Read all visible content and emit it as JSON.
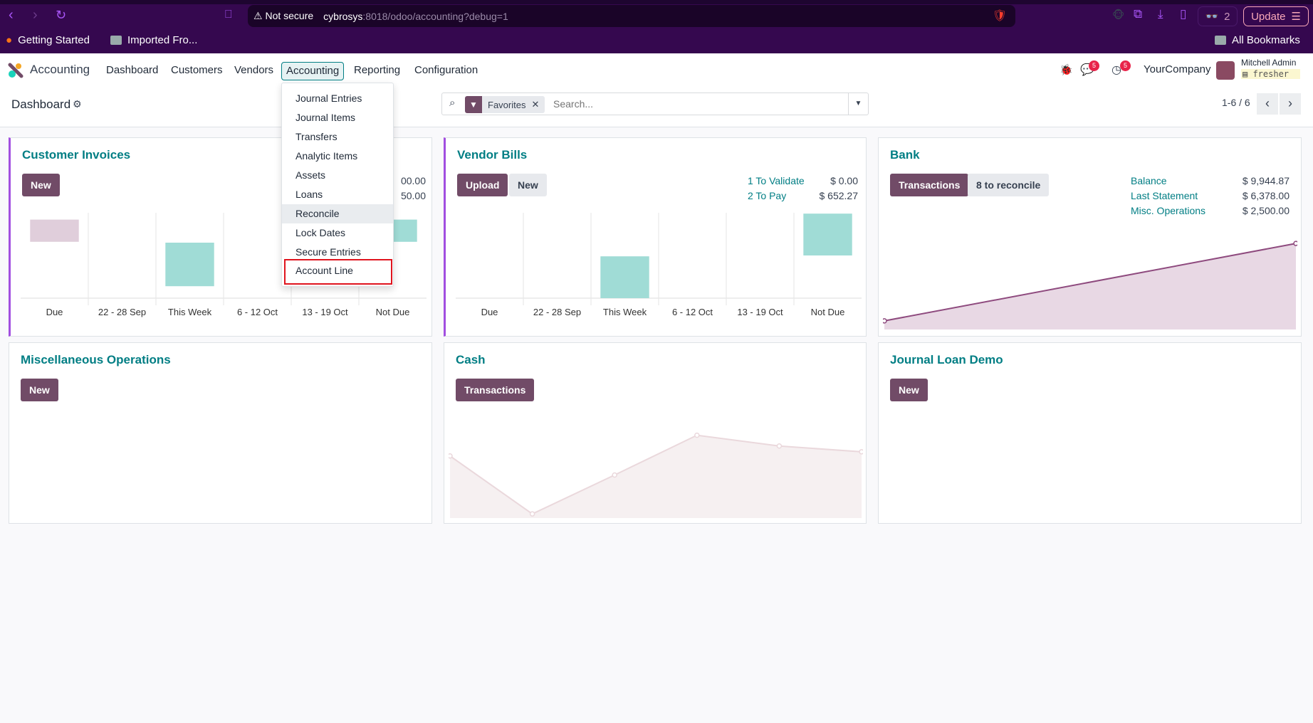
{
  "browser": {
    "not_secure": "Not secure",
    "url_host": "cybrosys",
    "url_path": ":8018/odoo/accounting?debug=1",
    "bookmarks": [
      "Getting Started",
      "Imported Fro..."
    ],
    "all_bookmarks": "All Bookmarks",
    "ext_count": "2",
    "update": "Update"
  },
  "navbar": {
    "app": "Accounting",
    "menus": [
      "Dashboard",
      "Customers",
      "Vendors",
      "Accounting",
      "Reporting",
      "Configuration"
    ],
    "chat_badge": "5",
    "activity_badge": "5",
    "company": "YourCompany",
    "user": "Mitchell Admin",
    "db": "fresher"
  },
  "dropdown": {
    "items": [
      "Journal Entries",
      "Journal Items",
      "Transfers",
      "Analytic Items",
      "Assets",
      "Loans",
      "Reconcile",
      "Lock Dates",
      "Secure Entries",
      "Account Line"
    ]
  },
  "control": {
    "breadcrumb": "Dashboard",
    "facet": "Favorites",
    "search_placeholder": "Search...",
    "pager": "1-6 / 6"
  },
  "cards": {
    "customer_invoices": {
      "title": "Customer Invoices",
      "new": "New",
      "stat_values": [
        "00.00",
        "50.00"
      ]
    },
    "vendor_bills": {
      "title": "Vendor Bills",
      "upload": "Upload",
      "new": "New",
      "stats": [
        {
          "label": "1 To Validate",
          "value": "$ 0.00"
        },
        {
          "label": "2 To Pay",
          "value": "$ 652.27"
        }
      ]
    },
    "bank": {
      "title": "Bank",
      "transactions": "Transactions",
      "reconcile": "8 to reconcile",
      "stats": [
        {
          "label": "Balance",
          "value": "$ 9,944.87"
        },
        {
          "label": "Last Statement",
          "value": "$ 6,378.00"
        },
        {
          "label": "Misc. Operations",
          "value": "$ 2,500.00"
        }
      ]
    },
    "misc": {
      "title": "Miscellaneous Operations",
      "new": "New"
    },
    "cash": {
      "title": "Cash",
      "transactions": "Transactions"
    },
    "loan": {
      "title": "Journal Loan Demo",
      "new": "New"
    }
  },
  "chart_data": [
    {
      "type": "bar",
      "name": "customer-invoices-chart",
      "categories": [
        "Due",
        "22 - 28 Sep",
        "This Week",
        "6 - 12 Oct",
        "13 - 19 Oct",
        "Not Due"
      ],
      "ranges": [
        [
          66,
          92
        ],
        null,
        [
          14,
          65
        ],
        null,
        null,
        [
          66,
          92
        ]
      ],
      "colors": [
        "#e0cedb",
        null,
        "#a0dcd6",
        null,
        null,
        "#a0dcd6"
      ],
      "ylim": [
        0,
        100
      ]
    },
    {
      "type": "bar",
      "name": "vendor-bills-chart",
      "categories": [
        "Due",
        "22 - 28 Sep",
        "This Week",
        "6 - 12 Oct",
        "13 - 19 Oct",
        "Not Due"
      ],
      "ranges": [
        null,
        null,
        [
          0,
          49
        ],
        null,
        null,
        [
          50,
          99
        ]
      ],
      "colors": [
        null,
        null,
        "#a0dcd6",
        null,
        null,
        "#a0dcd6"
      ],
      "ylim": [
        0,
        100
      ]
    },
    {
      "type": "area",
      "name": "bank-chart",
      "values": [
        10,
        100
      ],
      "ylim": [
        0,
        110
      ],
      "color": "#8e4a7e",
      "fill": "#e8d8e4"
    },
    {
      "type": "area",
      "name": "cash-chart",
      "values": [
        75,
        5,
        52,
        100,
        87,
        80
      ],
      "ylim": [
        0,
        110
      ],
      "color": "#ead8dc",
      "fill": "#f6f0f1"
    }
  ]
}
